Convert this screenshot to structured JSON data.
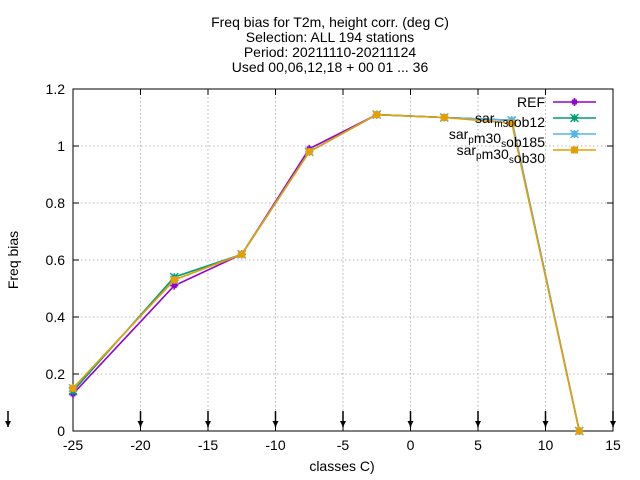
{
  "chart_data": {
    "type": "line",
    "title_lines": [
      "Freq bias  for T2m, height corr. (deg C)",
      "Selection: ALL     194 stations",
      "Period: 20211110-20211124",
      "Used 00,06,12,18 + 00 01 ... 36"
    ],
    "xlabel": "classes C)",
    "ylabel": "Freq bias",
    "xlim": [
      -25,
      15
    ],
    "ylim": [
      0,
      1.2
    ],
    "xticks": [
      -25,
      -20,
      -15,
      -10,
      -5,
      0,
      5,
      10,
      15
    ],
    "yticks": [
      0,
      0.2,
      0.4,
      0.6,
      0.8,
      1,
      1.2
    ],
    "grid": true,
    "legend_position": "top-right",
    "arrow_markers_x": [
      -25,
      -20,
      -15,
      -10,
      -5,
      0,
      5,
      10,
      15
    ],
    "series": [
      {
        "name": "REF",
        "color": "#9400d3",
        "marker": "plus",
        "x": [
          -25,
          -17.5,
          -12.5,
          -7.5,
          -2.5,
          2.5,
          7.5,
          12.5
        ],
        "y": [
          0.13,
          0.51,
          0.62,
          0.99,
          1.11,
          1.1,
          1.09,
          0.0
        ]
      },
      {
        "name": "sar_m30_ob12",
        "label_parts": [
          [
            "sar",
            "n"
          ],
          [
            "m30",
            "s"
          ],
          [
            "ob12",
            "n"
          ]
        ],
        "color": "#009e73",
        "marker": "cross",
        "x": [
          -25,
          -17.5,
          -12.5,
          -7.5,
          -2.5,
          2.5,
          7.5,
          12.5
        ],
        "y": [
          0.14,
          0.54,
          0.62,
          0.98,
          1.11,
          1.1,
          1.09,
          0.0
        ]
      },
      {
        "name": "sar_pm30_sob185",
        "label_parts": [
          [
            "sar",
            "n"
          ],
          [
            "p",
            "s"
          ],
          [
            "m30",
            "n"
          ],
          [
            "s",
            "s"
          ],
          [
            "ob185",
            "n"
          ]
        ],
        "color": "#56b4e9",
        "marker": "star",
        "x": [
          -25,
          -17.5,
          -12.5,
          -7.5,
          -2.5,
          2.5,
          7.5,
          12.5
        ],
        "y": [
          0.15,
          0.53,
          0.62,
          0.98,
          1.11,
          1.1,
          1.09,
          0.0
        ]
      },
      {
        "name": "sar_pm30_sob30",
        "label_parts": [
          [
            "sar",
            "n"
          ],
          [
            "p",
            "s"
          ],
          [
            "m30",
            "n"
          ],
          [
            "s",
            "s"
          ],
          [
            "ob30",
            "n"
          ]
        ],
        "color": "#e69f00",
        "marker": "square",
        "x": [
          -25,
          -17.5,
          -12.5,
          -7.5,
          -2.5,
          2.5,
          7.5,
          12.5
        ],
        "y": [
          0.15,
          0.53,
          0.62,
          0.98,
          1.11,
          1.1,
          1.08,
          0.0
        ]
      }
    ]
  }
}
